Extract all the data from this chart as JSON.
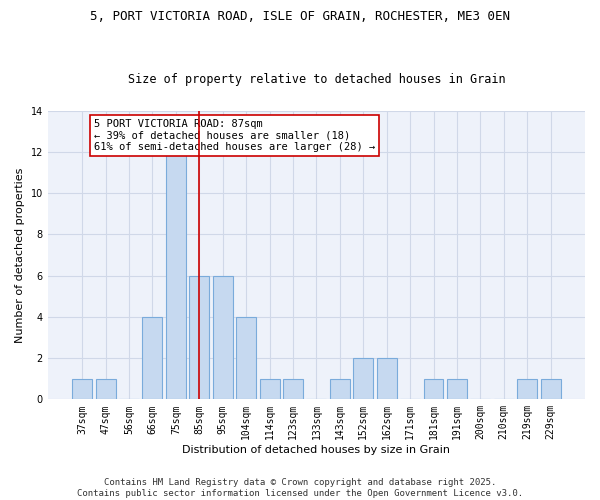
{
  "title_line1": "5, PORT VICTORIA ROAD, ISLE OF GRAIN, ROCHESTER, ME3 0EN",
  "title_line2": "Size of property relative to detached houses in Grain",
  "xlabel": "Distribution of detached houses by size in Grain",
  "ylabel": "Number of detached properties",
  "categories": [
    "37sqm",
    "47sqm",
    "56sqm",
    "66sqm",
    "75sqm",
    "85sqm",
    "95sqm",
    "104sqm",
    "114sqm",
    "123sqm",
    "133sqm",
    "143sqm",
    "152sqm",
    "162sqm",
    "171sqm",
    "181sqm",
    "191sqm",
    "200sqm",
    "210sqm",
    "219sqm",
    "229sqm"
  ],
  "values": [
    1,
    1,
    0,
    4,
    12,
    6,
    6,
    4,
    1,
    1,
    0,
    1,
    2,
    2,
    0,
    1,
    1,
    0,
    0,
    1,
    1
  ],
  "bar_color": "#c6d9f0",
  "bar_edge_color": "#7aabdb",
  "vline_x": 5.0,
  "vline_color": "#cc0000",
  "annotation_text": "5 PORT VICTORIA ROAD: 87sqm\n← 39% of detached houses are smaller (18)\n61% of semi-detached houses are larger (28) →",
  "annotation_box_color": "#ffffff",
  "annotation_box_edge": "#cc0000",
  "ylim": [
    0,
    14
  ],
  "yticks": [
    0,
    2,
    4,
    6,
    8,
    10,
    12,
    14
  ],
  "grid_color": "#d0d8e8",
  "background_color": "#eef2fa",
  "footer_text": "Contains HM Land Registry data © Crown copyright and database right 2025.\nContains public sector information licensed under the Open Government Licence v3.0.",
  "title_fontsize": 9,
  "subtitle_fontsize": 8.5,
  "axis_label_fontsize": 8,
  "tick_fontsize": 7,
  "annotation_fontsize": 7.5,
  "footer_fontsize": 6.5
}
